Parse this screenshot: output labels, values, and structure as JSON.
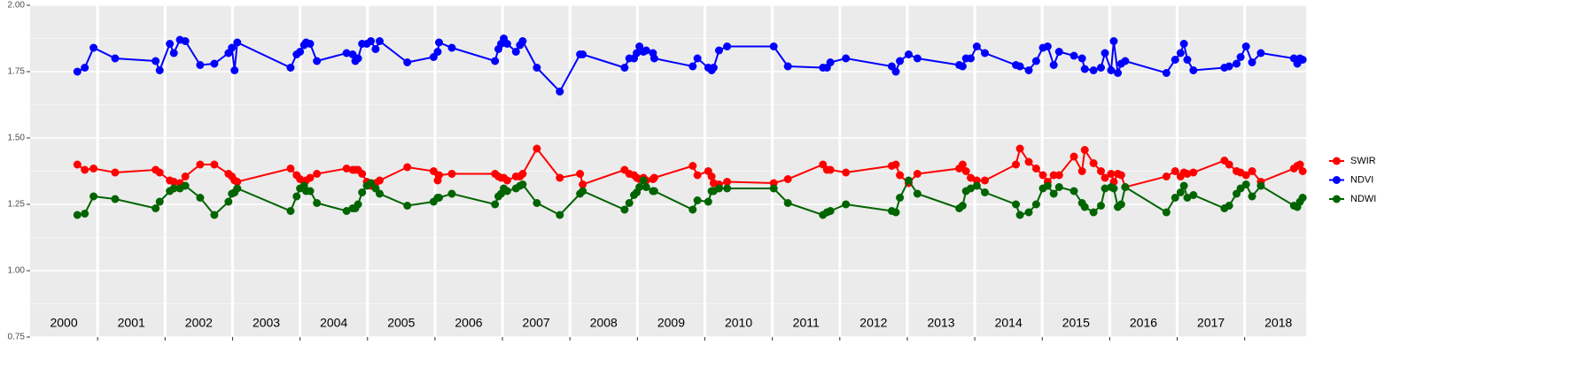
{
  "chart_data": {
    "type": "line",
    "x": [
      2000.7,
      2000.81,
      2000.94,
      2001.26,
      2001.86,
      2001.92,
      2002.07,
      2002.13,
      2002.22,
      2002.3,
      2002.52,
      2002.73,
      2002.94,
      2002.99,
      2003.03,
      2003.07,
      2003.86,
      2003.95,
      2004.0,
      2004.06,
      2004.09,
      2004.15,
      2004.25,
      2004.69,
      2004.78,
      2004.82,
      2004.86,
      2004.92,
      2004.99,
      2005.05,
      2005.12,
      2005.18,
      2005.59,
      2005.98,
      2006.04,
      2006.06,
      2006.25,
      2006.89,
      2006.94,
      2006.98,
      2007.02,
      2007.07,
      2007.2,
      2007.26,
      2007.3,
      2007.51,
      2007.85,
      2008.15,
      2008.19,
      2008.81,
      2008.88,
      2008.95,
      2008.99,
      2009.03,
      2009.09,
      2009.13,
      2009.23,
      2009.25,
      2009.82,
      2009.89,
      2010.05,
      2010.1,
      2010.13,
      2010.21,
      2010.33,
      2011.02,
      2011.23,
      2011.75,
      2011.81,
      2011.86,
      2012.09,
      2012.77,
      2012.83,
      2012.89,
      2013.02,
      2013.15,
      2013.77,
      2013.82,
      2013.87,
      2013.94,
      2014.03,
      2014.15,
      2014.61,
      2014.67,
      2014.8,
      2014.91,
      2015.01,
      2015.08,
      2015.17,
      2015.25,
      2015.47,
      2015.59,
      2015.63,
      2015.76,
      2015.87,
      2015.93,
      2016.02,
      2016.06,
      2016.12,
      2016.17,
      2016.23,
      2016.84,
      2016.97,
      2017.05,
      2017.1,
      2017.15,
      2017.24,
      2017.7,
      2017.77,
      2017.88,
      2017.94,
      2018.02,
      2018.11,
      2018.24,
      2018.73,
      2018.78,
      2018.82,
      2018.86
    ],
    "series": [
      {
        "name": "SWIR",
        "color": "#ff0000",
        "values": [
          1.4,
          1.38,
          1.385,
          1.37,
          1.38,
          1.37,
          1.34,
          1.335,
          1.33,
          1.355,
          1.4,
          1.4,
          1.365,
          1.355,
          1.34,
          1.335,
          1.385,
          1.36,
          1.345,
          1.335,
          1.34,
          1.35,
          1.365,
          1.385,
          1.38,
          1.38,
          1.38,
          1.365,
          1.335,
          1.32,
          1.33,
          1.34,
          1.39,
          1.375,
          1.34,
          1.36,
          1.365,
          1.365,
          1.355,
          1.35,
          1.35,
          1.34,
          1.355,
          1.355,
          1.365,
          1.46,
          1.35,
          1.365,
          1.325,
          1.38,
          1.365,
          1.36,
          1.35,
          1.345,
          1.35,
          1.34,
          1.345,
          1.35,
          1.395,
          1.36,
          1.375,
          1.355,
          1.33,
          1.325,
          1.335,
          1.33,
          1.345,
          1.4,
          1.38,
          1.38,
          1.37,
          1.395,
          1.4,
          1.36,
          1.33,
          1.365,
          1.385,
          1.4,
          1.375,
          1.35,
          1.34,
          1.34,
          1.4,
          1.46,
          1.41,
          1.385,
          1.36,
          1.335,
          1.36,
          1.36,
          1.43,
          1.375,
          1.455,
          1.405,
          1.375,
          1.35,
          1.365,
          1.335,
          1.365,
          1.36,
          1.315,
          1.355,
          1.375,
          1.355,
          1.37,
          1.365,
          1.37,
          1.415,
          1.4,
          1.375,
          1.37,
          1.36,
          1.375,
          1.335,
          1.385,
          1.395,
          1.4,
          1.375
        ]
      },
      {
        "name": "NDVI",
        "color": "#0000ff",
        "values": [
          1.75,
          1.765,
          1.84,
          1.8,
          1.79,
          1.755,
          1.855,
          1.82,
          1.87,
          1.865,
          1.775,
          1.78,
          1.82,
          1.84,
          1.755,
          1.86,
          1.765,
          1.815,
          1.825,
          1.85,
          1.86,
          1.855,
          1.79,
          1.82,
          1.815,
          1.79,
          1.8,
          1.855,
          1.855,
          1.865,
          1.835,
          1.865,
          1.785,
          1.805,
          1.825,
          1.86,
          1.84,
          1.79,
          1.835,
          1.855,
          1.875,
          1.855,
          1.825,
          1.85,
          1.865,
          1.765,
          1.675,
          1.815,
          1.815,
          1.765,
          1.8,
          1.8,
          1.82,
          1.845,
          1.825,
          1.83,
          1.82,
          1.8,
          1.77,
          1.8,
          1.765,
          1.755,
          1.765,
          1.83,
          1.845,
          1.845,
          1.77,
          1.765,
          1.765,
          1.785,
          1.8,
          1.77,
          1.75,
          1.79,
          1.815,
          1.8,
          1.775,
          1.77,
          1.8,
          1.8,
          1.845,
          1.82,
          1.775,
          1.77,
          1.755,
          1.79,
          1.84,
          1.845,
          1.775,
          1.825,
          1.81,
          1.8,
          1.76,
          1.755,
          1.765,
          1.82,
          1.755,
          1.865,
          1.745,
          1.78,
          1.79,
          1.745,
          1.795,
          1.82,
          1.855,
          1.795,
          1.755,
          1.765,
          1.77,
          1.78,
          1.805,
          1.845,
          1.785,
          1.82,
          1.8,
          1.78,
          1.8,
          1.795
        ]
      },
      {
        "name": "NDWI",
        "color": "#006400",
        "values": [
          1.21,
          1.215,
          1.28,
          1.27,
          1.235,
          1.26,
          1.3,
          1.31,
          1.31,
          1.32,
          1.275,
          1.21,
          1.26,
          1.29,
          1.295,
          1.31,
          1.225,
          1.28,
          1.31,
          1.32,
          1.3,
          1.3,
          1.255,
          1.225,
          1.235,
          1.235,
          1.25,
          1.295,
          1.32,
          1.33,
          1.31,
          1.29,
          1.245,
          1.26,
          1.275,
          1.275,
          1.29,
          1.25,
          1.28,
          1.29,
          1.31,
          1.3,
          1.31,
          1.32,
          1.325,
          1.255,
          1.21,
          1.29,
          1.3,
          1.23,
          1.255,
          1.285,
          1.295,
          1.315,
          1.34,
          1.315,
          1.3,
          1.3,
          1.23,
          1.265,
          1.26,
          1.3,
          1.3,
          1.31,
          1.31,
          1.31,
          1.255,
          1.21,
          1.22,
          1.225,
          1.25,
          1.225,
          1.22,
          1.275,
          1.34,
          1.29,
          1.235,
          1.245,
          1.3,
          1.31,
          1.32,
          1.295,
          1.25,
          1.21,
          1.22,
          1.25,
          1.31,
          1.32,
          1.29,
          1.315,
          1.3,
          1.255,
          1.24,
          1.22,
          1.245,
          1.31,
          1.315,
          1.31,
          1.24,
          1.25,
          1.315,
          1.22,
          1.275,
          1.295,
          1.32,
          1.275,
          1.285,
          1.235,
          1.245,
          1.29,
          1.31,
          1.325,
          1.28,
          1.32,
          1.245,
          1.24,
          1.26,
          1.275
        ]
      }
    ],
    "xlim": [
      2000,
      2018.91
    ],
    "xgrid": [
      2001,
      2002,
      2003,
      2004,
      2005,
      2006,
      2007,
      2008,
      2009,
      2010,
      2011,
      2012,
      2013,
      2014,
      2015,
      2016,
      2017,
      2018
    ],
    "year_labels": [
      {
        "x": 2000.5,
        "label": "2000"
      },
      {
        "x": 2001.5,
        "label": "2001"
      },
      {
        "x": 2002.5,
        "label": "2002"
      },
      {
        "x": 2003.5,
        "label": "2003"
      },
      {
        "x": 2004.5,
        "label": "2004"
      },
      {
        "x": 2005.5,
        "label": "2005"
      },
      {
        "x": 2006.5,
        "label": "2006"
      },
      {
        "x": 2007.5,
        "label": "2007"
      },
      {
        "x": 2008.5,
        "label": "2008"
      },
      {
        "x": 2009.5,
        "label": "2009"
      },
      {
        "x": 2010.5,
        "label": "2010"
      },
      {
        "x": 2011.5,
        "label": "2011"
      },
      {
        "x": 2012.5,
        "label": "2012"
      },
      {
        "x": 2013.5,
        "label": "2013"
      },
      {
        "x": 2014.5,
        "label": "2014"
      },
      {
        "x": 2015.5,
        "label": "2015"
      },
      {
        "x": 2016.5,
        "label": "2016"
      },
      {
        "x": 2017.5,
        "label": "2017"
      },
      {
        "x": 2018.5,
        "label": "2018"
      }
    ],
    "ylim": [
      0.75,
      2.0
    ],
    "yticks": [
      {
        "value": 0.75,
        "label": "0.75"
      },
      {
        "value": 1.0,
        "label": "1.00"
      },
      {
        "value": 1.25,
        "label": "1.25"
      },
      {
        "value": 1.5,
        "label": "1.50"
      },
      {
        "value": 1.75,
        "label": "1.75"
      },
      {
        "value": 2.0,
        "label": "2.00"
      }
    ],
    "grid": true,
    "legend": "right"
  }
}
